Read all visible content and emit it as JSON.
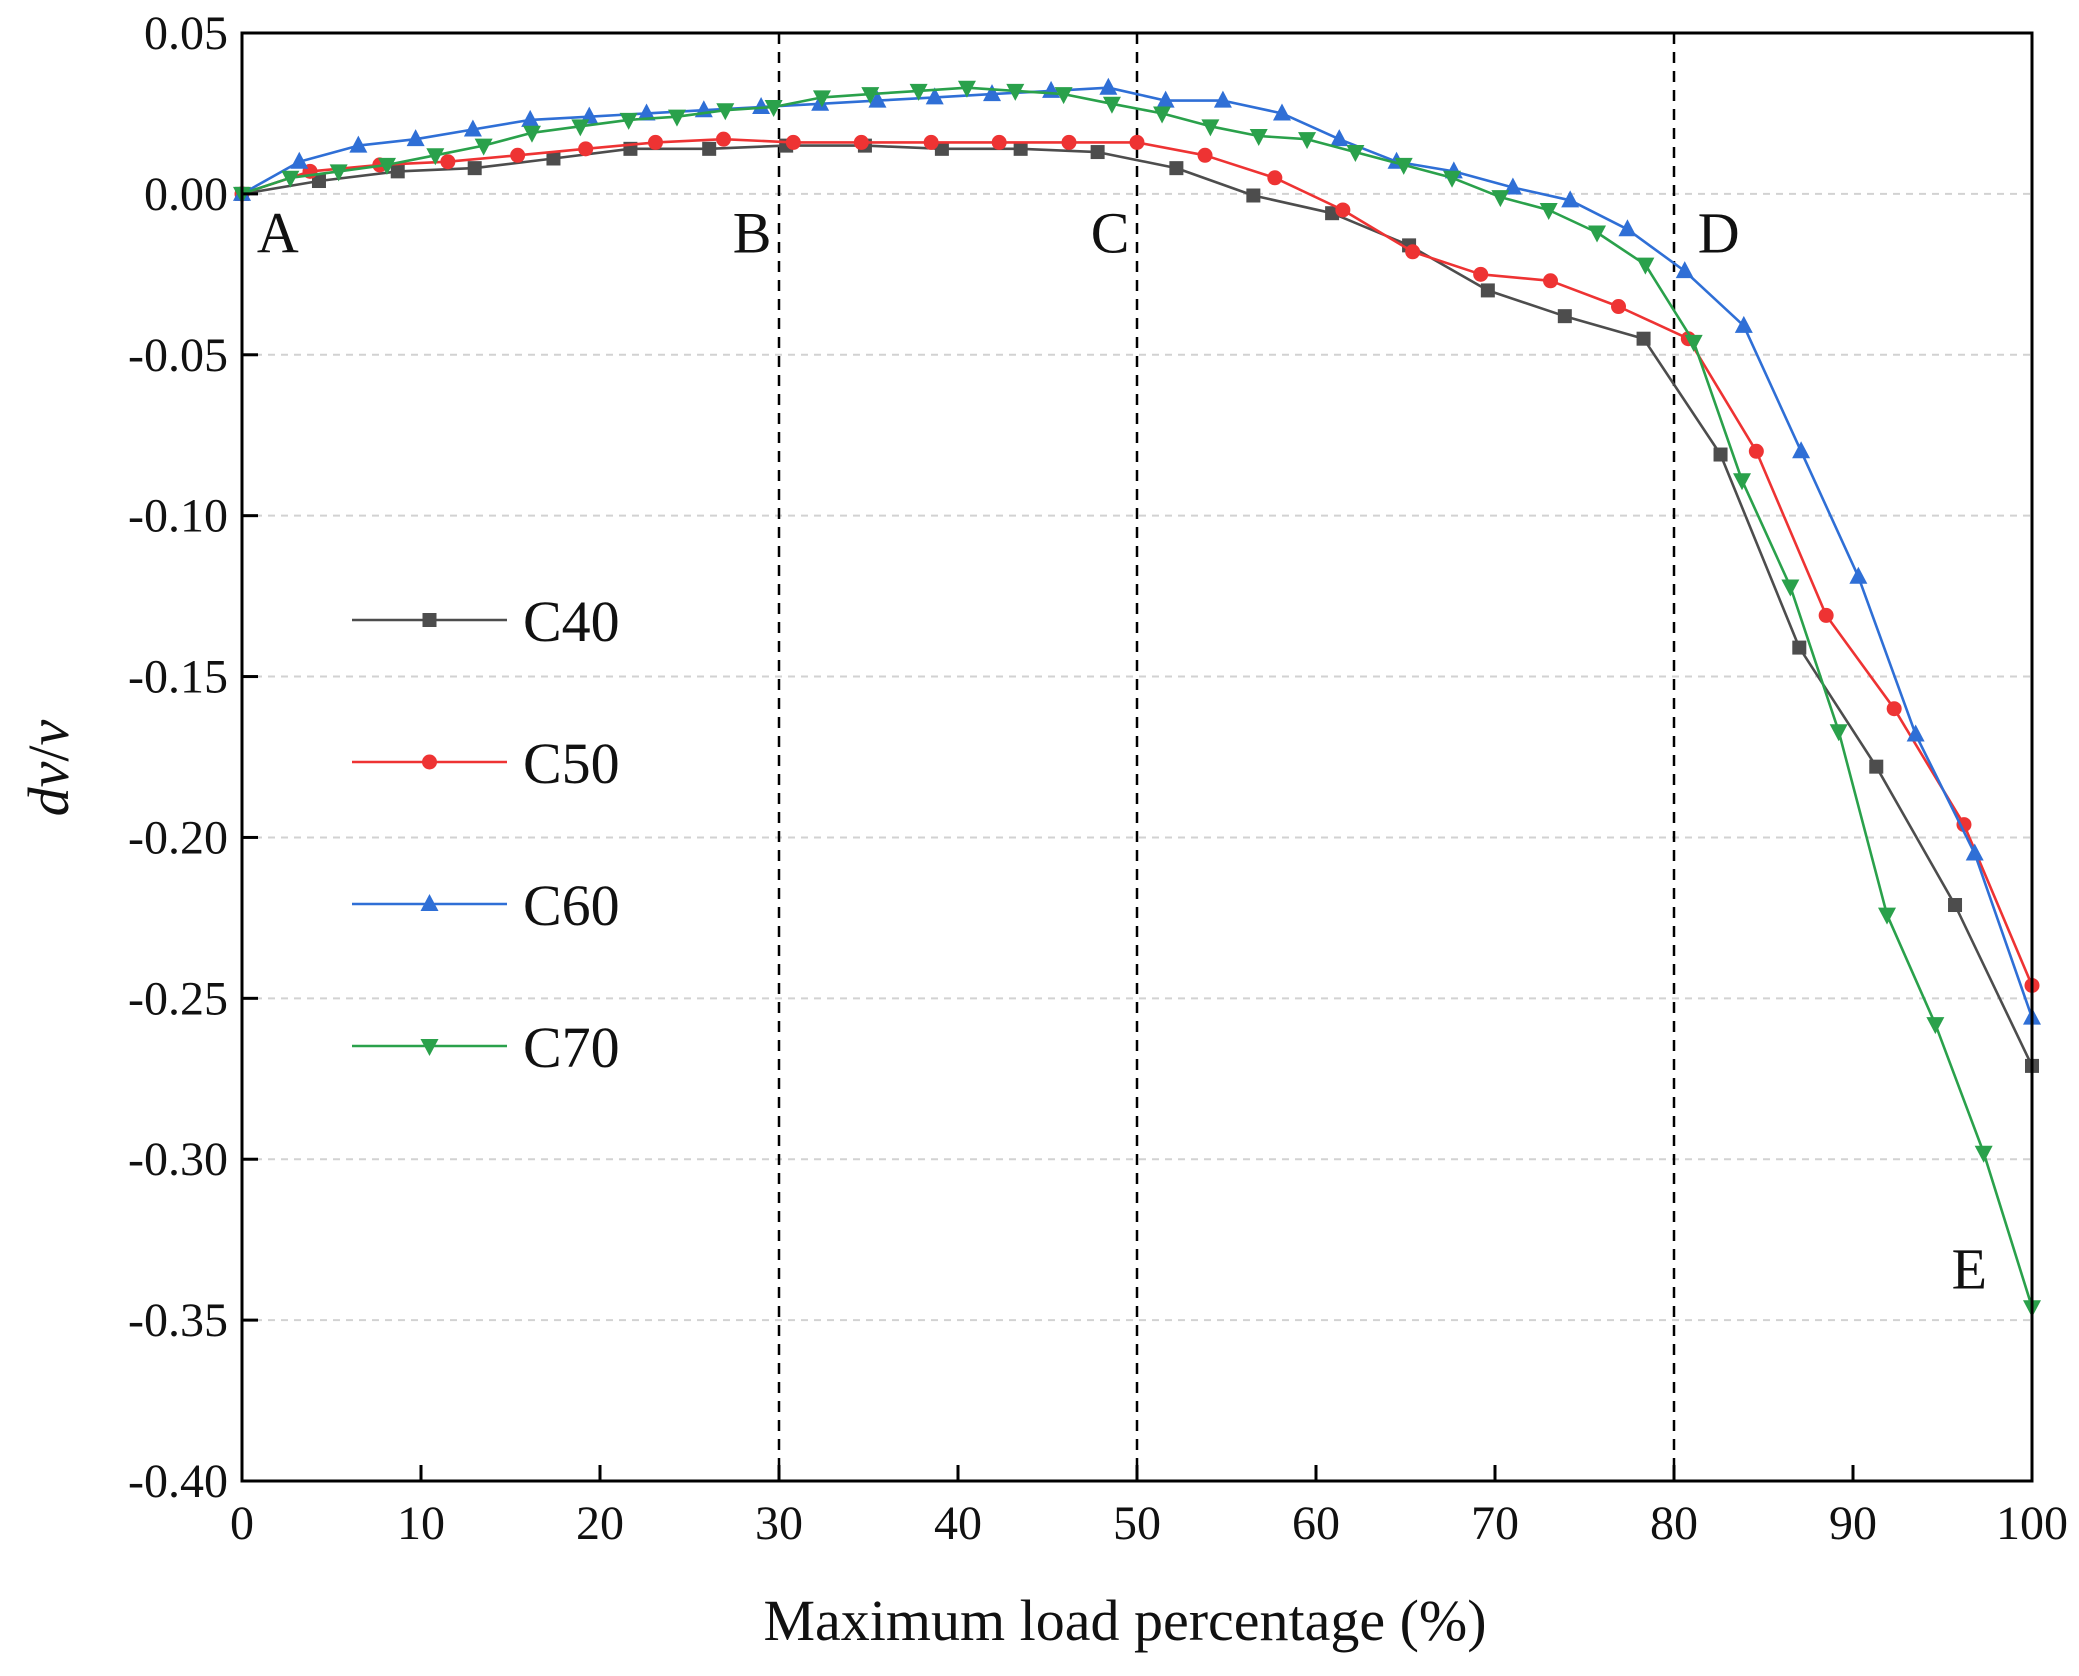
{
  "chart_data": {
    "type": "line",
    "title": "",
    "xlabel": "Maximum load percentage  (%)",
    "ylabel_italic": "dv",
    "ylabel_sep": "/",
    "ylabel_italic2": "v",
    "xlim": [
      0,
      100
    ],
    "ylim": [
      -0.4,
      0.05
    ],
    "x_ticks": [
      0,
      10,
      20,
      30,
      40,
      50,
      60,
      70,
      80,
      90,
      100
    ],
    "x_tick_labels": [
      "0",
      "10",
      "20",
      "30",
      "40",
      "50",
      "60",
      "70",
      "80",
      "90",
      "100"
    ],
    "y_ticks": [
      0.05,
      0.0,
      -0.05,
      -0.1,
      -0.15,
      -0.2,
      -0.25,
      -0.3,
      -0.35,
      -0.4
    ],
    "y_tick_labels": [
      "0.05",
      "0.00",
      "-0.05",
      "-0.10",
      "-0.15",
      "-0.20",
      "-0.25",
      "-0.30",
      "-0.35",
      "-0.40"
    ],
    "grid": "horizontal dashed",
    "legend_position": "left-middle",
    "vertical_lines": [
      30,
      50,
      80
    ],
    "regions": [
      {
        "label": "A",
        "x": 2,
        "y": -0.012
      },
      {
        "label": "B",
        "x": 28.5,
        "y": -0.012
      },
      {
        "label": "C",
        "x": 48.5,
        "y": -0.012
      },
      {
        "label": "D",
        "x": 82.5,
        "y": -0.012
      },
      {
        "label": "E",
        "x": 96.5,
        "y": -0.334
      }
    ],
    "series": [
      {
        "name": "C40",
        "color": "#4d4d4d",
        "marker": "square",
        "x": [
          0,
          4.3,
          8.7,
          13,
          17.4,
          21.7,
          26.1,
          30.4,
          34.8,
          39.1,
          43.5,
          47.8,
          52.2,
          56.5,
          60.9,
          65.2,
          69.6,
          73.9,
          78.3,
          82.6,
          87,
          91.3,
          95.7,
          100
        ],
        "values": [
          0,
          0.004,
          0.007,
          0.008,
          0.011,
          0.014,
          0.014,
          0.015,
          0.015,
          0.014,
          0.014,
          0.013,
          0.008,
          -0.0005,
          -0.006,
          -0.016,
          -0.03,
          -0.038,
          -0.045,
          -0.081,
          -0.141,
          -0.178,
          -0.221,
          -0.271
        ]
      },
      {
        "name": "C50",
        "color": "#ee3333",
        "marker": "circle",
        "x": [
          0,
          3.8,
          7.7,
          11.5,
          15.4,
          19.2,
          23.1,
          26.9,
          30.8,
          34.6,
          38.5,
          42.3,
          46.2,
          50,
          53.8,
          57.7,
          61.5,
          65.4,
          69.2,
          73.1,
          76.9,
          80.8,
          84.6,
          88.5,
          92.3,
          96.2,
          100
        ],
        "values": [
          0,
          0.007,
          0.009,
          0.01,
          0.012,
          0.014,
          0.016,
          0.017,
          0.016,
          0.016,
          0.016,
          0.016,
          0.016,
          0.016,
          0.012,
          0.005,
          -0.005,
          -0.018,
          -0.025,
          -0.027,
          -0.035,
          -0.045,
          -0.08,
          -0.131,
          -0.16,
          -0.196,
          -0.246
        ]
      },
      {
        "name": "C60",
        "color": "#2f6fd6",
        "marker": "triangle-up",
        "x": [
          0,
          3.2,
          6.5,
          9.7,
          12.9,
          16.1,
          19.4,
          22.6,
          25.8,
          29,
          32.3,
          35.5,
          38.7,
          41.9,
          45.2,
          48.4,
          51.6,
          54.8,
          58.1,
          61.3,
          64.5,
          67.7,
          71,
          74.2,
          77.4,
          80.6,
          83.9,
          87.1,
          90.3,
          93.5,
          96.8,
          100
        ],
        "values": [
          0,
          0.01,
          0.015,
          0.017,
          0.02,
          0.023,
          0.024,
          0.025,
          0.026,
          0.027,
          0.028,
          0.029,
          0.03,
          0.031,
          0.032,
          0.033,
          0.029,
          0.029,
          0.025,
          0.017,
          0.01,
          0.007,
          0.002,
          -0.002,
          -0.011,
          -0.024,
          -0.041,
          -0.08,
          -0.119,
          -0.168,
          -0.205,
          -0.256
        ]
      },
      {
        "name": "C70",
        "color": "#2aa14b",
        "marker": "triangle-down",
        "x": [
          0,
          2.7,
          5.4,
          8.1,
          10.8,
          13.5,
          16.2,
          18.9,
          21.6,
          24.3,
          27,
          29.7,
          32.4,
          35.1,
          37.8,
          40.5,
          43.2,
          45.9,
          48.6,
          51.4,
          54.1,
          56.8,
          59.5,
          62.2,
          64.9,
          67.6,
          70.3,
          73,
          75.7,
          78.4,
          81.1,
          83.8,
          86.5,
          89.2,
          91.9,
          94.6,
          97.3,
          100
        ],
        "values": [
          0,
          0.005,
          0.007,
          0.009,
          0.012,
          0.015,
          0.019,
          0.021,
          0.023,
          0.024,
          0.026,
          0.027,
          0.03,
          0.031,
          0.032,
          0.033,
          0.032,
          0.031,
          0.028,
          0.025,
          0.021,
          0.018,
          0.017,
          0.013,
          0.009,
          0.005,
          -0.001,
          -0.005,
          -0.012,
          -0.022,
          -0.046,
          -0.089,
          -0.122,
          -0.167,
          -0.224,
          -0.258,
          -0.298,
          -0.346
        ]
      }
    ]
  }
}
